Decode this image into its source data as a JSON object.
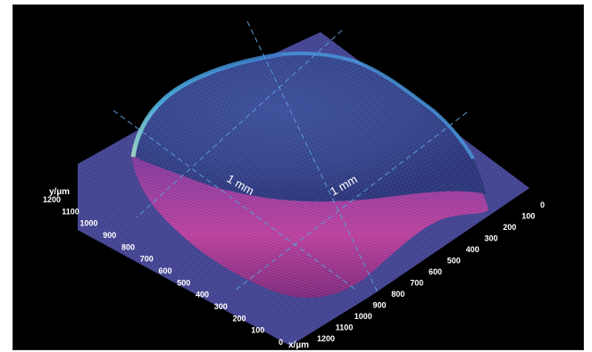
{
  "chart_data": {
    "type": "surface",
    "xlabel": "x/µm",
    "ylabel": "y/µm",
    "x_ticks": [
      0,
      100,
      200,
      300,
      400,
      500,
      600,
      700,
      800,
      900,
      1000,
      1100,
      1200
    ],
    "y_ticks": [
      0,
      100,
      200,
      300,
      400,
      500,
      600,
      700,
      800,
      900,
      1000,
      1100,
      1200
    ],
    "annotations": [
      "1 mm",
      "1 mm"
    ],
    "colormap": [
      "#3a2a6e",
      "#3f4fa0",
      "#3d7fd0",
      "#4fb8e8",
      "#a8e8c8"
    ],
    "edge_colors": [
      "#b040a0",
      "#e070c8"
    ],
    "grid": false,
    "background": "#000000"
  }
}
